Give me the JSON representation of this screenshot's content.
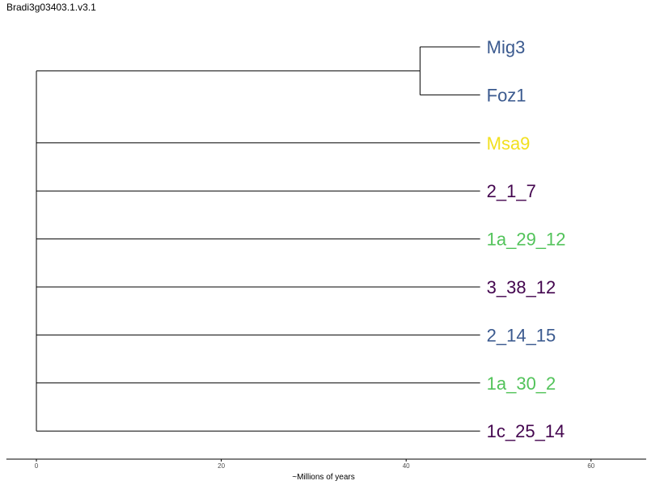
{
  "title": "Bradi3g03403.1.v3.1",
  "chart_data": {
    "type": "dendrogram",
    "title": "Bradi3g03403.1.v3.1",
    "xlabel": "~Millions of years",
    "xlim": [
      -1.5,
      65
    ],
    "x_ticks": [
      0,
      20,
      40,
      60
    ],
    "grid": false,
    "legend": "none",
    "root_age": 0,
    "clade": {
      "members": [
        "Mig3",
        "Foz1"
      ],
      "node_age": 41.5
    },
    "tips": [
      {
        "label": "Mig3",
        "color": "#3b5a8f",
        "branch_end": 48
      },
      {
        "label": "Foz1",
        "color": "#3b5a8f",
        "branch_end": 48
      },
      {
        "label": "Msa9",
        "color": "#f2e01f",
        "branch_end": 48
      },
      {
        "label": "2_1_7",
        "color": "#44064f",
        "branch_end": 48
      },
      {
        "label": "1a_29_12",
        "color": "#52c35a",
        "branch_end": 48
      },
      {
        "label": "3_38_12",
        "color": "#44064f",
        "branch_end": 48
      },
      {
        "label": "2_14_15",
        "color": "#3b5a8f",
        "branch_end": 48
      },
      {
        "label": "1a_30_2",
        "color": "#52c35a",
        "branch_end": 48
      },
      {
        "label": "1c_25_14",
        "color": "#44064f",
        "branch_end": 48
      }
    ]
  }
}
